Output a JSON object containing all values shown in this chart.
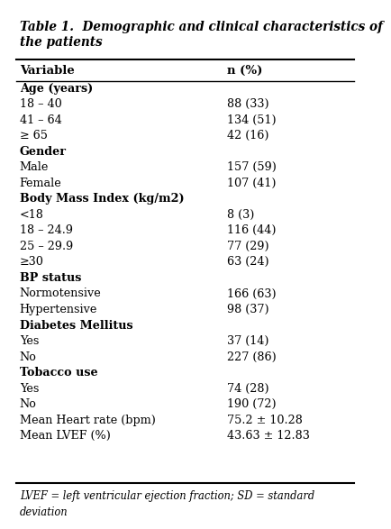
{
  "title_line1": "Table 1.  Demographic and clinical characteristics of",
  "title_line2": "the patients",
  "col1_header": "Variable",
  "col2_header": "n (%)",
  "rows": [
    {
      "var": "Age (years)",
      "val": "",
      "is_header": true
    },
    {
      "var": "18 – 40",
      "val": "88 (33)",
      "is_header": false
    },
    {
      "var": "41 – 64",
      "val": "134 (51)",
      "is_header": false
    },
    {
      "var": "≥ 65",
      "val": "42 (16)",
      "is_header": false
    },
    {
      "var": "Gender",
      "val": "",
      "is_header": true
    },
    {
      "var": "Male",
      "val": "157 (59)",
      "is_header": false
    },
    {
      "var": "Female",
      "val": "107 (41)",
      "is_header": false
    },
    {
      "var": "Body Mass Index (kg/m2)",
      "val": "",
      "is_header": true
    },
    {
      "var": "<18",
      "val": "8 (3)",
      "is_header": false
    },
    {
      "var": "18 – 24.9",
      "val": "116 (44)",
      "is_header": false
    },
    {
      "var": "25 – 29.9",
      "val": "77 (29)",
      "is_header": false
    },
    {
      "var": "≥30",
      "val": "63 (24)",
      "is_header": false
    },
    {
      "var": "BP status",
      "val": "",
      "is_header": true
    },
    {
      "var": "Normotensive",
      "val": "166 (63)",
      "is_header": false
    },
    {
      "var": "Hypertensive",
      "val": "98 (37)",
      "is_header": false
    },
    {
      "var": "Diabetes Mellitus",
      "val": "",
      "is_header": true
    },
    {
      "var": "Yes",
      "val": "37 (14)",
      "is_header": false
    },
    {
      "var": "No",
      "val": "227 (86)",
      "is_header": false
    },
    {
      "var": "Tobacco use",
      "val": "",
      "is_header": true
    },
    {
      "var": "Yes",
      "val": "74 (28)",
      "is_header": false
    },
    {
      "var": "No",
      "val": "190 (72)",
      "is_header": false
    },
    {
      "var": "Mean Heart rate (bpm)",
      "val": "75.2 ± 10.28",
      "is_header": false
    },
    {
      "var": "Mean LVEF (%)",
      "val": "43.63 ± 12.83",
      "is_header": false
    }
  ],
  "footnote_line1": "LVEF = left ventricular ejection fraction; SD = standard",
  "footnote_line2": "deviation",
  "bg_color": "#ffffff",
  "text_color": "#000000",
  "title_color": "#000000",
  "font_size": 9.2,
  "header_font_size": 9.5,
  "title_font_size": 9.8
}
